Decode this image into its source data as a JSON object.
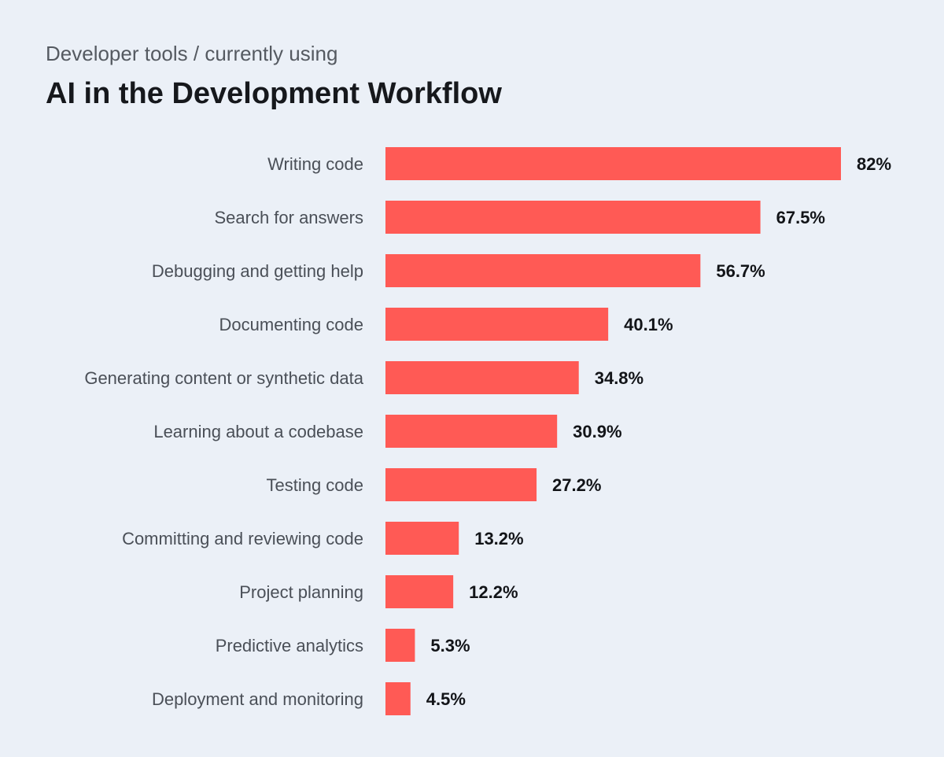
{
  "header": {
    "subtitle": "Developer tools / currently using",
    "title": "AI in the Development Workflow"
  },
  "colors": {
    "background": "#ebf0f7",
    "bar": "#ff5a55",
    "label": "#4a4f57",
    "value": "#121418"
  },
  "chart_data": {
    "type": "bar",
    "orientation": "horizontal",
    "title": "AI in the Development Workflow",
    "subtitle": "Developer tools / currently using",
    "categories": [
      "Writing code",
      "Search for answers",
      "Debugging and getting help",
      "Documenting code",
      "Generating content or synthetic data",
      "Learning about a codebase",
      "Testing code",
      "Committing and reviewing code",
      "Project planning",
      "Predictive analytics",
      "Deployment and monitoring"
    ],
    "values": [
      82,
      67.5,
      56.7,
      40.1,
      34.8,
      30.9,
      27.2,
      13.2,
      12.2,
      5.3,
      4.5
    ],
    "value_labels": [
      "82%",
      "67.5%",
      "56.7%",
      "40.1%",
      "34.8%",
      "30.9%",
      "27.2%",
      "13.2%",
      "12.2%",
      "5.3%",
      "4.5%"
    ],
    "xlim": [
      0,
      82
    ],
    "grid": false,
    "legend": "none"
  }
}
